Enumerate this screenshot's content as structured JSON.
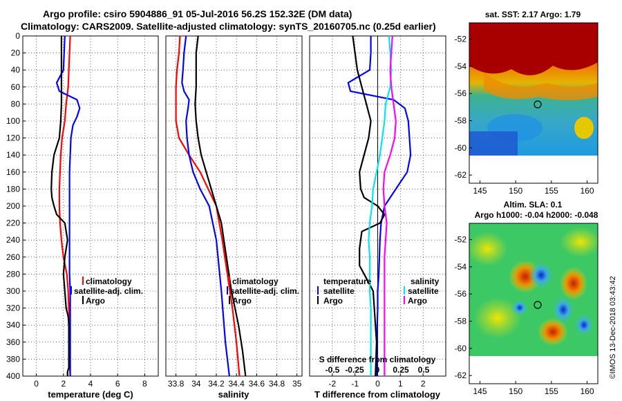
{
  "title": {
    "line1": "Argo profile: csiro 5904886_91 05-Jul-2016 56.2S 152.32E (DM data)",
    "line2": "Climatology: CARS2009. Satellite-adjusted climatology: synTS_20160705.nc (0.25d earlier)"
  },
  "credit": "©IMOS 13-Dec-2018 03:43:42",
  "colors": {
    "climatology": "#ff0000",
    "satellite": "#0000ff",
    "argo": "#000000",
    "sat_salinity": "#00e5ee",
    "argo_salinity": "#ff00ff"
  },
  "chart_data": [
    {
      "type": "line",
      "title": "",
      "xlabel": "temperature (deg C)",
      "ylabel": "",
      "xlim": [
        -1,
        9
      ],
      "ylim": [
        400,
        0
      ],
      "xticks": [
        "0",
        "2",
        "4",
        "6",
        "8"
      ],
      "xtick_values": [
        0,
        2,
        4,
        6,
        8
      ],
      "yticks": [
        "0",
        "20",
        "40",
        "60",
        "80",
        "100",
        "120",
        "140",
        "160",
        "180",
        "200",
        "220",
        "240",
        "260",
        "280",
        "300",
        "320",
        "340",
        "360",
        "380",
        "400"
      ],
      "legend": [
        "climatology",
        "satellite-adj. clim.",
        "Argo"
      ],
      "series": [
        {
          "name": "climatology",
          "color": "#ff0000",
          "x": [
            2.5,
            2.45,
            2.4,
            2.35,
            2.2,
            2.1,
            1.9,
            1.8,
            1.75,
            1.7,
            1.7,
            1.75,
            1.85,
            2.0,
            2.25,
            2.35,
            2.4,
            2.45,
            2.45,
            2.45,
            2.5
          ],
          "y": [
            0,
            20,
            40,
            60,
            80,
            100,
            120,
            140,
            160,
            180,
            200,
            220,
            240,
            260,
            280,
            300,
            320,
            340,
            360,
            380,
            400
          ]
        },
        {
          "name": "satellite-adj. clim.",
          "color": "#0000ff",
          "x": [
            2.1,
            2.05,
            2.0,
            1.5,
            1.7,
            3.0,
            3.2,
            3.0,
            2.7,
            2.55,
            2.5,
            2.45,
            2.45,
            2.45,
            2.45,
            2.5,
            2.5,
            2.5,
            2.5,
            2.5,
            2.5
          ],
          "y": [
            0,
            20,
            40,
            55,
            65,
            75,
            85,
            95,
            105,
            120,
            140,
            160,
            200,
            240,
            280,
            300,
            320,
            340,
            360,
            380,
            400
          ]
        },
        {
          "name": "Argo",
          "color": "#000000",
          "x": [
            1.85,
            1.85,
            1.85,
            1.85,
            1.85,
            1.8,
            1.7,
            1.3,
            1.15,
            1.1,
            1.15,
            1.3,
            1.5,
            2.1,
            2.3,
            2.1,
            2.0,
            2.1,
            2.2,
            2.35,
            2.4,
            2.4,
            2.4,
            2.4,
            2.3,
            2.3
          ],
          "y": [
            0,
            20,
            40,
            60,
            80,
            100,
            120,
            140,
            160,
            180,
            190,
            200,
            210,
            220,
            240,
            260,
            280,
            300,
            320,
            330,
            340,
            360,
            380,
            390,
            395,
            400
          ]
        }
      ]
    },
    {
      "type": "line",
      "title": "",
      "xlabel": "salinity",
      "ylabel": "",
      "xlim": [
        33.7,
        35.05
      ],
      "ylim": [
        400,
        0
      ],
      "xticks": [
        "33.8",
        "34",
        "34.2",
        "34.4",
        "34.6",
        "34.8",
        "35"
      ],
      "xtick_values": [
        33.8,
        34.0,
        34.2,
        34.4,
        34.6,
        34.8,
        35.0
      ],
      "legend": [
        "climatology",
        "satellite-adj. clim.",
        "Argo"
      ],
      "series": [
        {
          "name": "climatology",
          "color": "#ff0000",
          "x": [
            33.84,
            33.83,
            33.81,
            33.8,
            33.8,
            33.8,
            33.83,
            33.93,
            34.04,
            34.12,
            34.2,
            34.26,
            34.31,
            34.36,
            34.4,
            34.43
          ],
          "y": [
            0,
            20,
            40,
            60,
            80,
            100,
            120,
            140,
            160,
            180,
            200,
            240,
            280,
            320,
            360,
            400
          ]
        },
        {
          "name": "satellite-adj. clim.",
          "color": "#0000ff",
          "x": [
            33.9,
            33.88,
            33.87,
            33.86,
            33.88,
            33.93,
            33.92,
            33.9,
            33.91,
            33.93,
            33.97,
            34.04,
            34.13,
            34.2,
            34.25,
            34.29,
            34.33
          ],
          "y": [
            0,
            20,
            40,
            55,
            65,
            75,
            85,
            100,
            120,
            140,
            160,
            180,
            200,
            240,
            300,
            360,
            400
          ]
        },
        {
          "name": "Argo",
          "color": "#000000",
          "x": [
            34.02,
            34.0,
            34.0,
            34.0,
            33.99,
            34.0,
            34.02,
            34.05,
            34.1,
            34.15,
            34.2,
            34.25,
            34.3,
            34.35,
            34.42,
            34.46,
            34.49
          ],
          "y": [
            0,
            20,
            40,
            60,
            80,
            100,
            120,
            140,
            160,
            180,
            200,
            220,
            260,
            300,
            340,
            370,
            400
          ]
        }
      ]
    },
    {
      "type": "line",
      "title": "",
      "xlabel": "T difference from climatology",
      "ylabel": "",
      "xlim": [
        -3,
        3
      ],
      "ylim": [
        400,
        0
      ],
      "xticks": [
        "-2",
        "-1",
        "0",
        "1",
        "2"
      ],
      "xtick_values": [
        -2,
        -1,
        0,
        1,
        2
      ],
      "secondary_axis_label": "S difference from climatology",
      "secondary_xticks": [
        "-0.5",
        "-0.25",
        "0",
        "0.25",
        "0.5"
      ],
      "legend": [
        "temperature",
        "satellite",
        "Argo",
        "salinity",
        "satellite",
        "Argo"
      ],
      "series": [
        {
          "name": "temperature satellite",
          "color": "#0000ff",
          "x": [
            -0.3,
            -0.3,
            -0.35,
            -1.3,
            -1.2,
            0.7,
            1.2,
            1.35,
            1.4,
            1.45,
            1.3,
            0.8,
            0.3,
            0.15,
            0.1,
            0.05,
            0.0,
            0.0,
            -0.02,
            -0.02,
            -0.05
          ],
          "y": [
            0,
            20,
            40,
            55,
            65,
            75,
            85,
            100,
            120,
            140,
            160,
            180,
            200,
            220,
            240,
            280,
            300,
            320,
            340,
            380,
            400
          ]
        },
        {
          "name": "temperature Argo",
          "color": "#000000",
          "x": [
            -1.1,
            -1.0,
            -0.9,
            -0.7,
            -0.5,
            -0.3,
            -0.4,
            -0.6,
            -0.8,
            -0.75,
            -0.6,
            0.0,
            0.3,
            0.1,
            -0.7,
            -0.8,
            -0.8,
            -0.4,
            -0.2,
            -0.15,
            -0.1,
            -0.05,
            -0.1
          ],
          "y": [
            0,
            20,
            40,
            60,
            80,
            100,
            120,
            140,
            160,
            180,
            190,
            200,
            210,
            220,
            230,
            250,
            270,
            290,
            300,
            320,
            340,
            360,
            400
          ]
        },
        {
          "name": "salinity satellite",
          "color": "#00e5ee",
          "x": [
            0.5,
            0.55,
            0.6,
            0.55,
            0.35,
            0.3,
            0.2,
            0.1,
            -0.05,
            -0.2,
            -0.25,
            -0.35,
            -0.4,
            -0.35,
            -0.35,
            -0.35,
            -0.3,
            -0.3,
            -0.3,
            -0.3
          ],
          "y": [
            0,
            20,
            40,
            60,
            80,
            100,
            120,
            140,
            160,
            180,
            200,
            220,
            240,
            260,
            280,
            300,
            320,
            340,
            360,
            400
          ]
        },
        {
          "name": "salinity Argo",
          "color": "#ff00ff",
          "x": [
            0.65,
            0.6,
            0.55,
            0.6,
            0.7,
            0.8,
            0.75,
            0.55,
            0.3,
            0.25,
            0.3,
            0.4,
            0.35,
            0.3,
            0.3,
            0.3,
            0.3,
            0.3,
            0.3
          ],
          "y": [
            0,
            20,
            40,
            60,
            80,
            100,
            120,
            140,
            160,
            180,
            200,
            220,
            240,
            260,
            280,
            300,
            320,
            360,
            400
          ]
        }
      ]
    }
  ],
  "maps": [
    {
      "title": "sat. SST: 2.17 Argo: 1.79",
      "title2": "",
      "xticks": [
        "145",
        "150",
        "155",
        "160"
      ],
      "yticks": [
        "-52",
        "-54",
        "-56",
        "-58",
        "-60",
        "-62"
      ]
    },
    {
      "title": "Altim. SLA: 0.1",
      "title2": "Argo h1000: -0.04 h2000: -0.048",
      "xticks": [
        "145",
        "150",
        "155",
        "160"
      ],
      "yticks": [
        "-52",
        "-54",
        "-56",
        "-58",
        "-60",
        "-62"
      ]
    }
  ]
}
